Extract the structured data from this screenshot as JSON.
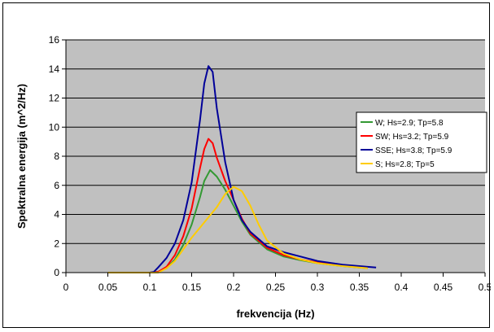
{
  "chart_data": {
    "type": "line",
    "title": "",
    "xlabel": "frekvencija (Hz)",
    "ylabel": "Spektralna energija (m^2/Hz)",
    "xlim": [
      0,
      0.5
    ],
    "ylim": [
      0,
      16
    ],
    "x_ticks": [
      0,
      0.05,
      0.1,
      0.15,
      0.2,
      0.25,
      0.3,
      0.35,
      0.4,
      0.45,
      0.5
    ],
    "x_tick_labels": [
      "0",
      "0.05",
      "0.1",
      "0.15",
      "0.2",
      "0.25",
      "0.3",
      "0.35",
      "0.4",
      "0.45",
      "0.5"
    ],
    "y_ticks": [
      0,
      2,
      4,
      6,
      8,
      10,
      12,
      14,
      16
    ],
    "y_tick_labels": [
      "0",
      "2",
      "4",
      "6",
      "8",
      "10",
      "12",
      "14",
      "16"
    ],
    "grid": "horizontal",
    "plot_background": "#c0c0c0",
    "legend_position": "right",
    "series": [
      {
        "name": "W; Hs=2.9; Tp=5.8",
        "color": "#339933",
        "points": [
          [
            0.05,
            0
          ],
          [
            0.1,
            0
          ],
          [
            0.11,
            0.05
          ],
          [
            0.12,
            0.3
          ],
          [
            0.13,
            0.9
          ],
          [
            0.14,
            1.9
          ],
          [
            0.15,
            3.3
          ],
          [
            0.16,
            5.2
          ],
          [
            0.165,
            6.3
          ],
          [
            0.172,
            7.05
          ],
          [
            0.18,
            6.6
          ],
          [
            0.19,
            5.7
          ],
          [
            0.2,
            4.6
          ],
          [
            0.21,
            3.5
          ],
          [
            0.22,
            2.6
          ],
          [
            0.24,
            1.6
          ],
          [
            0.26,
            1.1
          ],
          [
            0.28,
            0.85
          ],
          [
            0.3,
            0.65
          ],
          [
            0.33,
            0.45
          ],
          [
            0.36,
            0.3
          ]
        ]
      },
      {
        "name": "SW; Hs=3.2; Tp=5.9",
        "color": "#ff0000",
        "points": [
          [
            0.05,
            0
          ],
          [
            0.1,
            0
          ],
          [
            0.11,
            0.05
          ],
          [
            0.12,
            0.4
          ],
          [
            0.13,
            1.2
          ],
          [
            0.14,
            2.5
          ],
          [
            0.15,
            4.4
          ],
          [
            0.16,
            7.2
          ],
          [
            0.165,
            8.5
          ],
          [
            0.17,
            9.2
          ],
          [
            0.175,
            8.9
          ],
          [
            0.18,
            7.9
          ],
          [
            0.19,
            6.3
          ],
          [
            0.2,
            5.0
          ],
          [
            0.21,
            3.7
          ],
          [
            0.22,
            2.7
          ],
          [
            0.24,
            1.7
          ],
          [
            0.26,
            1.2
          ],
          [
            0.28,
            0.9
          ],
          [
            0.3,
            0.7
          ],
          [
            0.33,
            0.5
          ],
          [
            0.36,
            0.35
          ]
        ]
      },
      {
        "name": "SSE; Hs=3.8; Tp=5.9",
        "color": "#000099",
        "points": [
          [
            0.05,
            0
          ],
          [
            0.1,
            0
          ],
          [
            0.105,
            0.05
          ],
          [
            0.11,
            0.35
          ],
          [
            0.12,
            1.0
          ],
          [
            0.13,
            2.0
          ],
          [
            0.14,
            3.6
          ],
          [
            0.15,
            6.2
          ],
          [
            0.16,
            10.5
          ],
          [
            0.165,
            13.0
          ],
          [
            0.17,
            14.2
          ],
          [
            0.175,
            13.8
          ],
          [
            0.18,
            11.3
          ],
          [
            0.19,
            7.6
          ],
          [
            0.2,
            5.0
          ],
          [
            0.21,
            3.6
          ],
          [
            0.22,
            2.8
          ],
          [
            0.24,
            1.8
          ],
          [
            0.26,
            1.4
          ],
          [
            0.28,
            1.1
          ],
          [
            0.3,
            0.8
          ],
          [
            0.33,
            0.55
          ],
          [
            0.37,
            0.35
          ]
        ]
      },
      {
        "name": "S; Hs=2.8; Tp=5",
        "color": "#ffcc00",
        "points": [
          [
            0.05,
            0
          ],
          [
            0.11,
            0
          ],
          [
            0.12,
            0.3
          ],
          [
            0.13,
            0.8
          ],
          [
            0.14,
            1.6
          ],
          [
            0.15,
            2.4
          ],
          [
            0.16,
            3.1
          ],
          [
            0.17,
            3.8
          ],
          [
            0.18,
            4.5
          ],
          [
            0.19,
            5.4
          ],
          [
            0.2,
            5.9
          ],
          [
            0.21,
            5.6
          ],
          [
            0.22,
            4.6
          ],
          [
            0.23,
            3.3
          ],
          [
            0.24,
            2.2
          ],
          [
            0.26,
            1.3
          ],
          [
            0.28,
            0.9
          ],
          [
            0.3,
            0.65
          ],
          [
            0.33,
            0.45
          ],
          [
            0.36,
            0.3
          ]
        ]
      }
    ]
  }
}
